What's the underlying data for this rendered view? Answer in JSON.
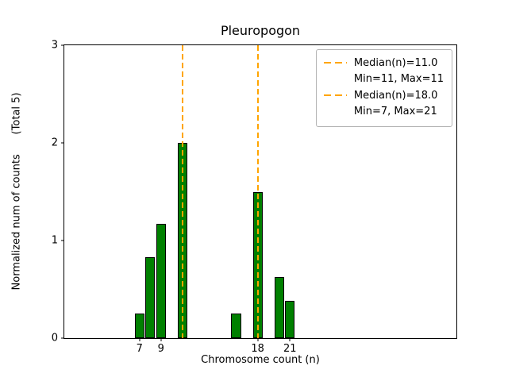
{
  "chart_data": {
    "type": "bar",
    "title": "Pleuropogon",
    "xlabel": "Chromosome count (n)",
    "ylabel": "Normalized num of counts      (Total 5)",
    "xlim": [
      0,
      36.5
    ],
    "ylim": [
      0,
      3
    ],
    "xticks": [
      7,
      9,
      18,
      21
    ],
    "yticks": [
      0,
      1,
      2,
      3
    ],
    "grid": false,
    "bar_width": 0.9,
    "bar_color": "#008000",
    "bar_edge_color": "#000000",
    "median_color": "#FFA500",
    "bars": [
      {
        "x": 7,
        "height": 0.25
      },
      {
        "x": 8,
        "height": 0.83
      },
      {
        "x": 9,
        "height": 1.17
      },
      {
        "x": 11,
        "height": 2.0
      },
      {
        "x": 16,
        "height": 0.25
      },
      {
        "x": 18,
        "height": 1.5
      },
      {
        "x": 20,
        "height": 0.63
      },
      {
        "x": 21,
        "height": 0.38
      }
    ],
    "median_lines": [
      {
        "x": 11,
        "label": "Median(n)=11.0",
        "sublabel": "Min=11, Max=11"
      },
      {
        "x": 18,
        "label": "Median(n)=18.0",
        "sublabel": "Min=7, Max=21"
      }
    ],
    "legend_position": "upper right",
    "legend": [
      {
        "line1": "Median(n)=11.0",
        "line2": "Min=11, Max=11"
      },
      {
        "line1": "Median(n)=18.0",
        "line2": "Min=7, Max=21"
      }
    ]
  }
}
